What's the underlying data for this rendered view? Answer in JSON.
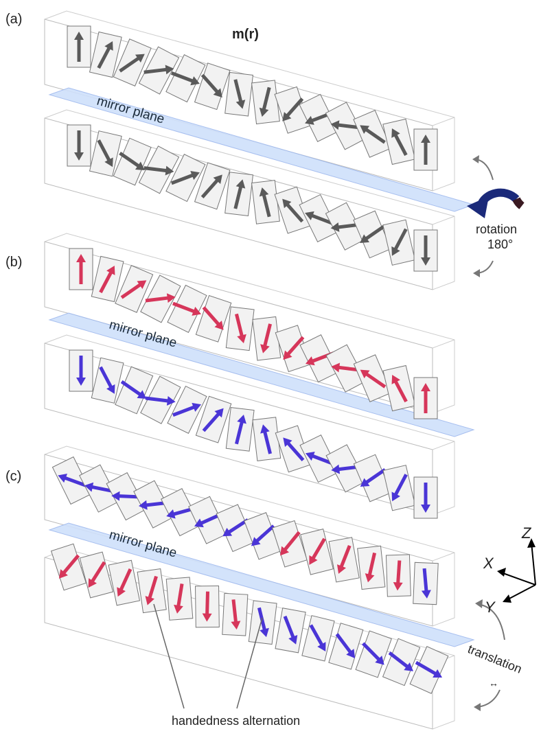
{
  "panels": [
    {
      "label": "(a)"
    },
    {
      "label": "(b)"
    },
    {
      "label": "(c)"
    }
  ],
  "title": "m(r)",
  "mirror_planes": [
    "mirror plane",
    "mirror plane",
    "mirror plane"
  ],
  "rotation": {
    "text": "rotation",
    "angle": "180°"
  },
  "translation": {
    "text": "translation",
    "symbol": "↔"
  },
  "annotation": "handedness alternation",
  "axes": {
    "z": "Z",
    "x": "X",
    "y": "Y"
  }
}
